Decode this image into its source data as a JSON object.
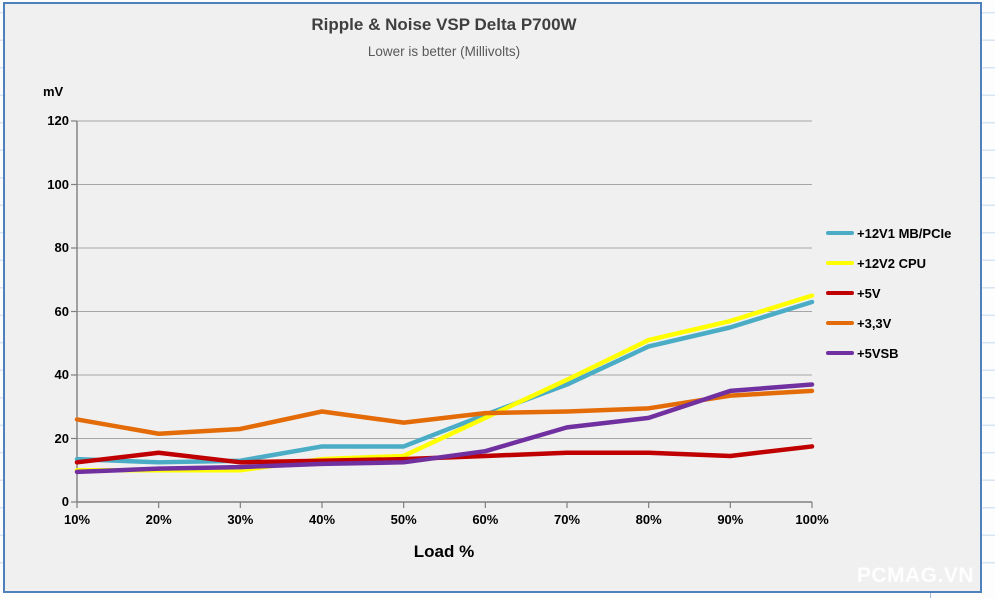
{
  "page": {
    "watermark": "PCMAG.VN"
  },
  "chart_data": {
    "type": "line",
    "title": "Ripple & Noise VSP Delta P700W",
    "subtitle": "Lower is better (Millivolts)",
    "xlabel": "Load %",
    "ylabel": "mV",
    "categories": [
      "10%",
      "20%",
      "30%",
      "40%",
      "50%",
      "60%",
      "70%",
      "80%",
      "90%",
      "100%"
    ],
    "ylim": [
      0,
      120
    ],
    "yticks": [
      0,
      20,
      40,
      60,
      80,
      100,
      120
    ],
    "grid": "horizontal",
    "legend_position": "right",
    "series": [
      {
        "name": "+12V1 MB/PCIe",
        "color": "#4BACC6",
        "values": [
          13.5,
          12.5,
          13,
          17.5,
          17.5,
          27.5,
          37,
          49,
          55,
          63
        ]
      },
      {
        "name": "+12V2 CPU",
        "color": "#FFFF00",
        "values": [
          10,
          10,
          10,
          13.5,
          14.5,
          26.5,
          38.5,
          51,
          57,
          65
        ]
      },
      {
        "name": "+5V",
        "color": "#C00000",
        "values": [
          12.5,
          15.5,
          12.5,
          13,
          13.5,
          14.5,
          15.5,
          15.5,
          14.5,
          17.5
        ]
      },
      {
        "name": "+3,3V",
        "color": "#E36C09",
        "values": [
          26,
          21.5,
          23,
          28.5,
          25,
          28,
          28.5,
          29.5,
          33.5,
          35
        ]
      },
      {
        "name": "+5VSB",
        "color": "#7030A0",
        "values": [
          9.5,
          10.5,
          11,
          12,
          12.5,
          16,
          23.5,
          26.5,
          35,
          37
        ]
      }
    ],
    "colors": {
      "gridline": "#A6A6A6",
      "axis": "#7F7F7F",
      "chart_border": "#4E80BC",
      "chart_background": "#F0F0F0"
    }
  }
}
